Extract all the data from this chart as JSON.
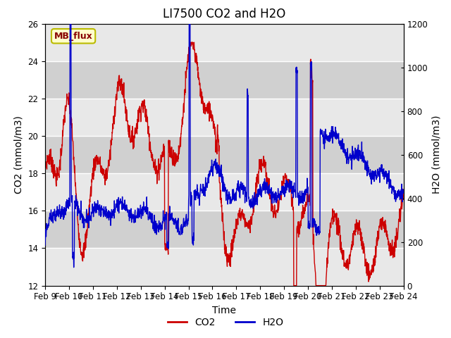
{
  "title": "LI7500 CO2 and H2O",
  "xlabel": "Time",
  "ylabel_left": "CO2 (mmol/m3)",
  "ylabel_right": "H2O (mmol/m3)",
  "ylim_left": [
    12,
    26
  ],
  "ylim_right": [
    0,
    1200
  ],
  "xtick_labels": [
    "Feb 9",
    "Feb 10",
    "Feb 11",
    "Feb 12",
    "Feb 13",
    "Feb 14",
    "Feb 15",
    "Feb 16",
    "Feb 17",
    "Feb 18",
    "Feb 19",
    "Feb 20",
    "Feb 21",
    "Feb 22",
    "Feb 23",
    "Feb 24"
  ],
  "watermark_text": "MB_flux",
  "watermark_facecolor": "#ffffcc",
  "watermark_edgecolor": "#bbbb00",
  "watermark_textcolor": "#880000",
  "axes_facecolor": "#d8d8d8",
  "band_light": "#e8e8e8",
  "band_dark": "#d0d0d0",
  "co2_color": "#cc0000",
  "h2o_color": "#0000cc",
  "legend_co2_label": "CO2",
  "legend_h2o_label": "H2O",
  "title_fontsize": 12,
  "axis_label_fontsize": 10,
  "tick_fontsize": 8.5,
  "linewidth": 1.0
}
